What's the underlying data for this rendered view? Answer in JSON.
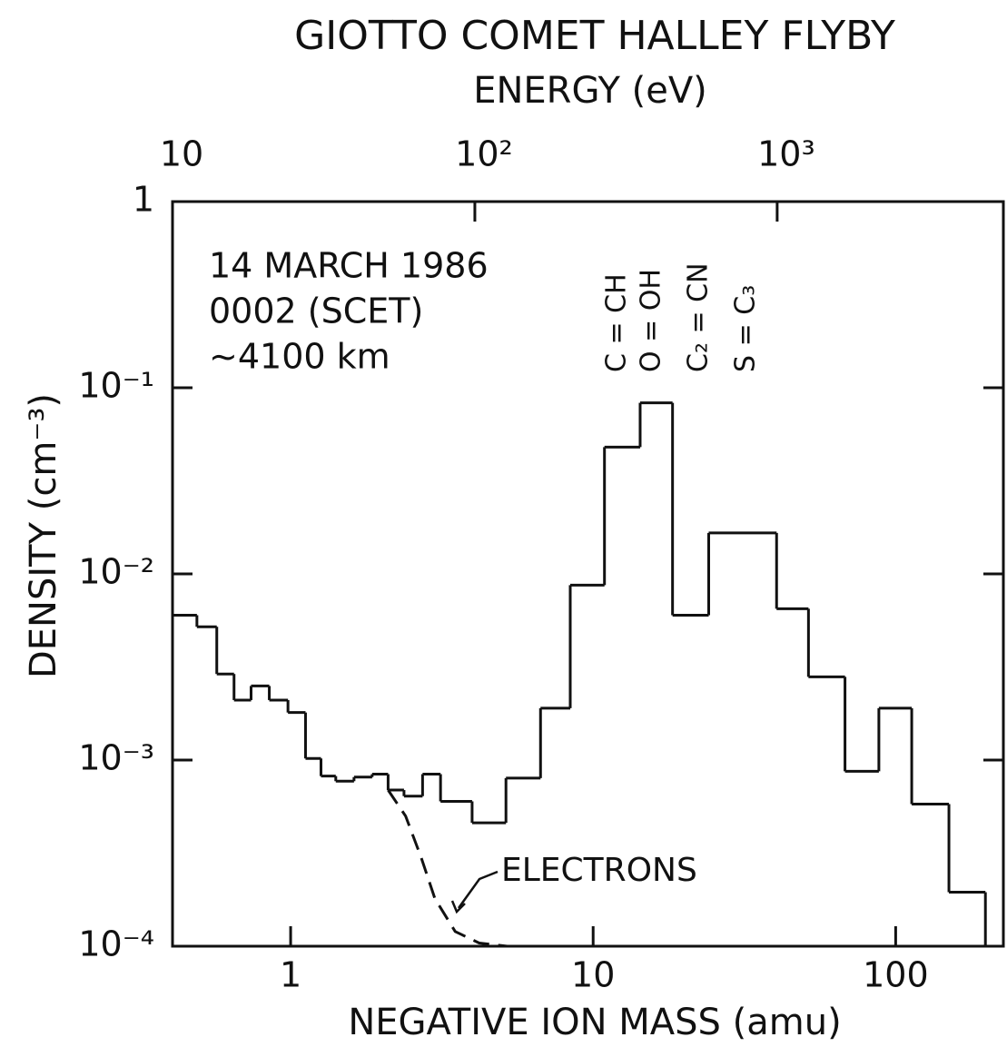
{
  "chart_data": {
    "type": "histogram",
    "title": "GIOTTO COMET HALLEY FLYBY",
    "x2label": "ENERGY (eV)",
    "xlabel": "NEGATIVE ION MASS (amu)",
    "ylabel": "DENSITY (cm⁻³)",
    "log_x": true,
    "log_y": true,
    "xlim": [
      0.407,
      227
    ],
    "xticks": [
      1,
      10,
      100
    ],
    "x2lim": [
      10,
      5600
    ],
    "x2ticks": [
      10,
      {
        "value": 100,
        "label": "10²"
      },
      {
        "value": 1000,
        "label": "10³"
      }
    ],
    "ylim": [
      0.0001,
      1
    ],
    "yticks": [
      {
        "value": 0.0001,
        "label": "10⁻⁴"
      },
      {
        "value": 0.001,
        "label": "10⁻³"
      },
      {
        "value": 0.01,
        "label": "10⁻²"
      },
      {
        "value": 0.1,
        "label": "10⁻¹"
      },
      1
    ],
    "color": "#111111",
    "bins": [
      0.407,
      0.49,
      0.57,
      0.65,
      0.74,
      0.85,
      0.98,
      1.12,
      1.26,
      1.41,
      1.62,
      1.86,
      2.1,
      2.37,
      2.73,
      3.13,
      3.98,
      5.15,
      6.7,
      8.4,
      10.9,
      14.3,
      18.3,
      24.1,
      40.4,
      51.5,
      68,
      88,
      113,
      150,
      198
    ],
    "values": [
      0.006,
      0.0052,
      0.0029,
      0.0021,
      0.0025,
      0.0021,
      0.0018,
      0.00102,
      0.00082,
      0.00077,
      0.00081,
      0.00084,
      0.00069,
      0.00064,
      0.00084,
      0.0006,
      0.00046,
      0.0008,
      0.0019,
      0.0087,
      0.048,
      0.083,
      0.006,
      0.0166,
      0.0065,
      0.0028,
      0.00087,
      0.0019,
      0.00058,
      0.000195
    ],
    "series": [
      {
        "name": "ELECTRONS",
        "color": "#111111",
        "x": [
          2.1,
          2.4,
          2.7,
          3.0,
          3.5,
          4.2,
          5.2
        ],
        "values": [
          0.00069,
          0.0005,
          0.0003,
          0.00018,
          0.00012,
          0.000104,
          0.0001
        ]
      }
    ],
    "annotations": [
      "14 MARCH 1986",
      "0002 (SCET)",
      "~4100 km"
    ],
    "species": [
      "C = CH",
      "O = OH",
      "C₂ = CN",
      "S = C₃"
    ]
  }
}
